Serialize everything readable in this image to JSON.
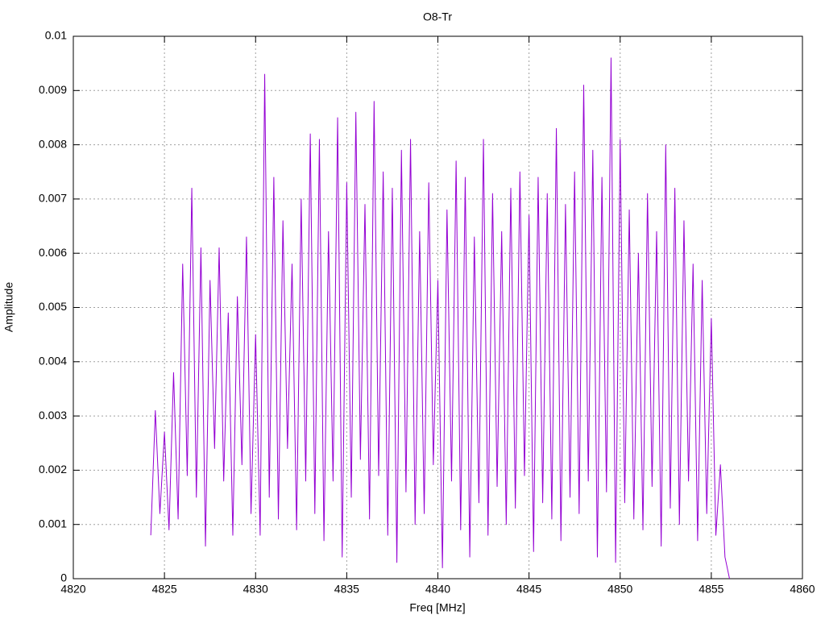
{
  "chart_data": {
    "type": "line",
    "title": "O8-Tr",
    "x_label": "Freq [MHz]",
    "y_label": "Amplitude",
    "x": [
      4824.25,
      4824.5,
      4824.75,
      4825,
      4825.25,
      4825.5,
      4825.75,
      4826,
      4826.25,
      4826.5,
      4826.75,
      4827,
      4827.25,
      4827.5,
      4827.75,
      4828,
      4828.25,
      4828.5,
      4828.75,
      4829,
      4829.25,
      4829.5,
      4829.75,
      4830,
      4830.25,
      4830.5,
      4830.75,
      4831,
      4831.25,
      4831.5,
      4831.75,
      4832,
      4832.25,
      4832.5,
      4832.75,
      4833,
      4833.25,
      4833.5,
      4833.75,
      4834,
      4834.25,
      4834.5,
      4834.75,
      4835,
      4835.25,
      4835.5,
      4835.75,
      4836,
      4836.25,
      4836.5,
      4836.75,
      4837,
      4837.25,
      4837.5,
      4837.75,
      4838,
      4838.25,
      4838.5,
      4838.75,
      4839,
      4839.25,
      4839.5,
      4839.75,
      4840,
      4840.25,
      4840.5,
      4840.75,
      4841,
      4841.25,
      4841.5,
      4841.75,
      4842,
      4842.25,
      4842.5,
      4842.75,
      4843,
      4843.25,
      4843.5,
      4843.75,
      4844,
      4844.25,
      4844.5,
      4844.75,
      4845,
      4845.25,
      4845.5,
      4845.75,
      4846,
      4846.25,
      4846.5,
      4846.75,
      4847,
      4847.25,
      4847.5,
      4847.75,
      4848,
      4848.25,
      4848.5,
      4848.75,
      4849,
      4849.25,
      4849.5,
      4849.75,
      4850,
      4850.25,
      4850.5,
      4850.75,
      4851,
      4851.25,
      4851.5,
      4851.75,
      4852,
      4852.25,
      4852.5,
      4852.75,
      4853,
      4853.25,
      4853.5,
      4853.75,
      4854,
      4854.25,
      4854.5,
      4854.75,
      4855,
      4855.25,
      4855.5,
      4855.75,
      4856
    ],
    "series": [
      {
        "color": "#9400d3",
        "values": [
          0.0008,
          0.0031,
          0.0012,
          0.0027,
          0.0009,
          0.0038,
          0.0011,
          0.0058,
          0.0019,
          0.0072,
          0.0015,
          0.0061,
          0.0006,
          0.0055,
          0.0024,
          0.0061,
          0.0018,
          0.0049,
          0.0008,
          0.0052,
          0.0021,
          0.0063,
          0.0012,
          0.0045,
          0.0008,
          0.0093,
          0.0015,
          0.0074,
          0.0011,
          0.0066,
          0.0024,
          0.0058,
          0.0009,
          0.007,
          0.0018,
          0.0082,
          0.0012,
          0.0081,
          0.0007,
          0.0064,
          0.0018,
          0.0085,
          0.0004,
          0.0073,
          0.0015,
          0.0086,
          0.0022,
          0.0069,
          0.0011,
          0.0088,
          0.0019,
          0.0075,
          0.0008,
          0.0072,
          0.0003,
          0.0079,
          0.0016,
          0.0081,
          0.001,
          0.0064,
          0.0012,
          0.0073,
          0.0021,
          0.0055,
          0.0002,
          0.0068,
          0.0018,
          0.0077,
          0.0009,
          0.0074,
          0.0004,
          0.0063,
          0.0014,
          0.0081,
          0.0008,
          0.0071,
          0.0017,
          0.0064,
          0.001,
          0.0072,
          0.0013,
          0.0075,
          0.0019,
          0.0067,
          0.0005,
          0.0074,
          0.0014,
          0.0071,
          0.0011,
          0.0083,
          0.0007,
          0.0069,
          0.0015,
          0.0075,
          0.0012,
          0.0091,
          0.0018,
          0.0079,
          0.0004,
          0.0074,
          0.0016,
          0.0096,
          0.0003,
          0.0081,
          0.0014,
          0.0068,
          0.0011,
          0.006,
          0.0009,
          0.0071,
          0.0017,
          0.0064,
          0.0006,
          0.008,
          0.0013,
          0.0072,
          0.001,
          0.0066,
          0.0018,
          0.0058,
          0.0007,
          0.0055,
          0.0012,
          0.0048,
          0.0008,
          0.0021,
          0.0004,
          0
        ]
      }
    ],
    "xlim": [
      4820,
      4860
    ],
    "xticks": [
      4820,
      4825,
      4830,
      4835,
      4840,
      4845,
      4850,
      4855,
      4860
    ],
    "ylim": [
      0,
      0.01
    ],
    "yticks": [
      0,
      0.001,
      0.002,
      0.003,
      0.004,
      0.005,
      0.006,
      0.007,
      0.008,
      0.009,
      0.01
    ],
    "grid": true
  }
}
